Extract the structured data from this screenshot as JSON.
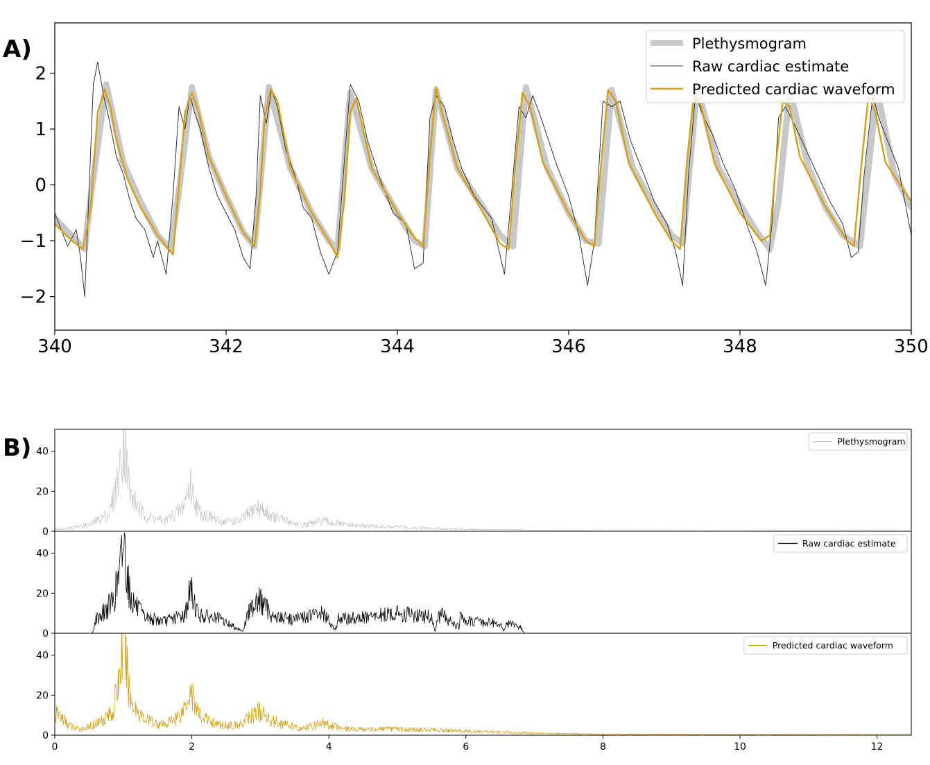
{
  "panels": {
    "a_label": "A)",
    "b_label": "B)"
  },
  "chart_data": [
    {
      "type": "line",
      "panel": "A)",
      "xlim": [
        340,
        350
      ],
      "ylim": [
        -2.6,
        2.9
      ],
      "x_ticks": [
        340,
        342,
        344,
        346,
        348,
        350
      ],
      "y_ticks": [
        -2,
        -1,
        0,
        1,
        2
      ],
      "y_tick_labels": [
        "−2",
        "−1",
        "0",
        "1",
        "2"
      ],
      "grid": false,
      "legend_position": "top-right",
      "beat_times": [
        340.6,
        341.6,
        342.5,
        343.45,
        344.45,
        345.5,
        346.5,
        347.5,
        348.55,
        349.6
      ],
      "series": [
        {
          "name": "Plethysmogram",
          "color": "#c8c8c8",
          "x": [
            340.0,
            340.35,
            340.42,
            340.6,
            340.8,
            341.0,
            341.2,
            341.35,
            341.45,
            341.6,
            341.8,
            342.0,
            342.2,
            342.33,
            342.38,
            342.5,
            342.75,
            343.0,
            343.2,
            343.3,
            343.45,
            343.7,
            344.0,
            344.2,
            344.32,
            344.45,
            344.7,
            345.0,
            345.2,
            345.35,
            345.5,
            345.75,
            346.0,
            346.2,
            346.35,
            346.5,
            346.75,
            347.0,
            347.2,
            347.33,
            347.5,
            347.75,
            348.0,
            348.2,
            348.35,
            348.45,
            348.58,
            348.8,
            349.0,
            349.2,
            349.4,
            349.6,
            349.8,
            350.0
          ],
          "y": [
            -0.6,
            -1.15,
            -0.2,
            1.8,
            0.4,
            -0.3,
            -0.9,
            -1.15,
            -0.1,
            1.75,
            0.5,
            -0.2,
            -0.85,
            -1.1,
            -0.3,
            1.75,
            0.3,
            -0.5,
            -1.0,
            -1.15,
            1.65,
            0.3,
            -0.5,
            -1.0,
            -1.1,
            1.7,
            0.3,
            -0.4,
            -0.9,
            -1.1,
            1.75,
            0.3,
            -0.5,
            -1.0,
            -1.05,
            1.7,
            0.3,
            -0.4,
            -0.9,
            -1.05,
            1.75,
            0.3,
            -0.35,
            -0.85,
            -1.15,
            -0.3,
            1.7,
            0.3,
            -0.4,
            -0.9,
            -1.1,
            1.7,
            0.2,
            -0.4
          ]
        },
        {
          "name": "Raw cardiac estimate",
          "color": "#333333",
          "x": [
            340.0,
            340.05,
            340.1,
            340.15,
            340.25,
            340.3,
            340.35,
            340.45,
            340.5,
            340.57,
            340.63,
            340.72,
            340.8,
            340.88,
            340.95,
            341.05,
            341.15,
            341.2,
            341.3,
            341.38,
            341.45,
            341.52,
            341.58,
            341.63,
            341.7,
            341.8,
            341.9,
            342.0,
            342.1,
            342.2,
            342.28,
            342.35,
            342.4,
            342.47,
            342.53,
            342.6,
            342.7,
            342.8,
            342.9,
            343.0,
            343.1,
            343.2,
            343.3,
            343.38,
            343.45,
            343.55,
            343.65,
            343.8,
            343.95,
            344.1,
            344.2,
            344.3,
            344.38,
            344.45,
            344.55,
            344.65,
            344.75,
            344.9,
            345.1,
            345.25,
            345.33,
            345.42,
            345.5,
            345.58,
            345.7,
            345.85,
            346.0,
            346.12,
            346.22,
            346.3,
            346.4,
            346.5,
            346.6,
            346.72,
            346.85,
            347.0,
            347.15,
            347.25,
            347.33,
            347.4,
            347.48,
            347.58,
            347.68,
            347.8,
            347.95,
            348.1,
            348.2,
            348.3,
            348.38,
            348.45,
            348.53,
            348.63,
            348.75,
            348.9,
            349.05,
            349.2,
            349.3,
            349.38,
            349.45,
            349.55,
            349.62,
            349.72,
            349.85,
            350.0
          ],
          "y": [
            -0.5,
            -0.7,
            -0.9,
            -1.1,
            -0.8,
            -1.3,
            -2.0,
            1.8,
            2.2,
            1.6,
            1.2,
            0.5,
            0.2,
            -0.3,
            -0.6,
            -0.8,
            -1.3,
            -1.0,
            -1.6,
            -0.2,
            1.4,
            1.0,
            1.6,
            1.3,
            1.0,
            0.3,
            -0.2,
            -0.5,
            -0.8,
            -1.3,
            -1.5,
            -0.2,
            1.6,
            1.1,
            1.7,
            1.4,
            0.6,
            0.2,
            -0.4,
            -0.6,
            -1.2,
            -1.6,
            -1.2,
            0.4,
            1.8,
            1.5,
            0.8,
            0.1,
            -0.5,
            -0.7,
            -1.5,
            -1.4,
            1.2,
            1.6,
            1.4,
            0.8,
            0.3,
            -0.2,
            -0.6,
            -1.6,
            -0.2,
            1.4,
            1.2,
            1.6,
            1.1,
            0.4,
            -0.2,
            -0.9,
            -1.8,
            -1.0,
            1.5,
            1.4,
            1.5,
            0.8,
            0.3,
            -0.3,
            -0.7,
            -1.2,
            -1.8,
            0.2,
            1.6,
            1.2,
            0.9,
            0.4,
            -0.1,
            -0.8,
            -1.2,
            -1.8,
            -0.6,
            1.2,
            1.4,
            1.1,
            0.7,
            0.2,
            -0.3,
            -0.7,
            -1.3,
            -1.2,
            0.2,
            1.6,
            1.2,
            0.8,
            0.3,
            -0.9
          ]
        },
        {
          "name": "Predicted cardiac waveform",
          "color": "#d4a017",
          "x": [
            340.0,
            340.2,
            340.33,
            340.42,
            340.5,
            340.58,
            340.65,
            340.72,
            340.85,
            341.0,
            341.2,
            341.38,
            341.45,
            341.52,
            341.6,
            341.68,
            341.8,
            342.0,
            342.2,
            342.33,
            342.4,
            342.45,
            342.52,
            342.6,
            342.75,
            343.0,
            343.2,
            343.3,
            343.38,
            343.45,
            343.52,
            343.7,
            344.0,
            344.2,
            344.3,
            344.38,
            344.45,
            344.52,
            344.7,
            345.0,
            345.2,
            345.3,
            345.38,
            345.46,
            345.55,
            345.7,
            346.0,
            346.2,
            346.3,
            346.38,
            346.46,
            346.55,
            346.7,
            347.0,
            347.2,
            347.3,
            347.38,
            347.46,
            347.55,
            347.7,
            348.0,
            348.25,
            348.35,
            348.42,
            348.5,
            348.58,
            348.7,
            349.0,
            349.25,
            349.33,
            349.42,
            349.5,
            349.58,
            349.7,
            350.0
          ],
          "y": [
            -0.7,
            -1.0,
            -1.15,
            -0.4,
            1.3,
            1.7,
            1.4,
            0.8,
            0.1,
            -0.4,
            -0.9,
            -1.25,
            0.0,
            1.3,
            1.65,
            1.3,
            0.5,
            -0.2,
            -0.85,
            -1.1,
            -0.1,
            1.2,
            1.72,
            1.5,
            0.3,
            -0.5,
            -1.0,
            -1.3,
            -0.3,
            1.3,
            1.55,
            0.3,
            -0.5,
            -0.95,
            -1.1,
            0.5,
            1.75,
            1.3,
            0.3,
            -0.5,
            -1.05,
            -1.15,
            0.4,
            1.65,
            1.4,
            0.4,
            -0.5,
            -1.0,
            -1.1,
            0.4,
            1.7,
            1.5,
            0.4,
            -0.5,
            -1.0,
            -1.15,
            0.4,
            1.6,
            1.4,
            0.4,
            -0.5,
            -1.0,
            -0.9,
            0.4,
            1.5,
            1.4,
            0.5,
            -0.4,
            -1.0,
            -1.1,
            0.4,
            1.6,
            1.3,
            0.4,
            -0.3
          ]
        }
      ]
    },
    {
      "type": "line",
      "panel": "B)",
      "subplot": 1,
      "xlim": [
        0,
        12.5
      ],
      "ylim": [
        0,
        51
      ],
      "y_ticks": [
        0,
        20,
        40
      ],
      "grid": false,
      "legend_position": "top-right",
      "series": [
        {
          "name": "Plethysmogram",
          "color": "#c8c8c8",
          "x": [
            0,
            0.5,
            0.8,
            0.95,
            1.0,
            1.1,
            1.3,
            1.6,
            1.85,
            1.98,
            2.1,
            2.4,
            2.7,
            2.95,
            3.2,
            3.6,
            3.9,
            4.3,
            5.0,
            6.0,
            7.0,
            8.0,
            10.0,
            12.5
          ],
          "y": [
            1,
            3,
            9,
            30,
            49,
            18,
            8,
            5,
            11,
            23,
            10,
            5,
            5,
            12,
            7,
            3,
            5,
            3,
            2,
            1,
            0.5,
            0.3,
            0.2,
            0.1
          ]
        }
      ]
    },
    {
      "type": "line",
      "panel": "B)",
      "subplot": 2,
      "xlim": [
        0,
        12.5
      ],
      "ylim": [
        0,
        51
      ],
      "y_ticks": [
        0,
        20,
        40
      ],
      "grid": false,
      "legend_position": "top-right",
      "series": [
        {
          "name": "Raw cardiac estimate",
          "color": "#000000",
          "x": [
            0,
            0.55,
            0.6,
            0.7,
            0.85,
            0.95,
            1.0,
            1.1,
            1.3,
            1.6,
            1.9,
            1.98,
            2.1,
            2.4,
            2.75,
            2.8,
            2.95,
            3.2,
            3.5,
            3.9,
            4.1,
            4.15,
            4.2,
            4.6,
            5.0,
            5.5,
            5.55,
            5.6,
            5.65,
            5.9,
            5.92,
            6.0,
            6.05,
            6.5,
            6.55,
            6.6,
            6.8,
            6.85,
            12.5
          ],
          "y": [
            0,
            0,
            7,
            10,
            16,
            30,
            47,
            18,
            8,
            6,
            9,
            22,
            9,
            7,
            1,
            8,
            18,
            8,
            7,
            10,
            2,
            8,
            7,
            8,
            10,
            8,
            1,
            8,
            9,
            3,
            9,
            5,
            6,
            5,
            1,
            5,
            3,
            0,
            0
          ]
        }
      ]
    },
    {
      "type": "line",
      "panel": "B)",
      "subplot": 3,
      "xlim": [
        0,
        12.5
      ],
      "ylim": [
        0,
        51
      ],
      "x_ticks": [
        0,
        2,
        4,
        6,
        8,
        10,
        12
      ],
      "y_ticks": [
        0,
        20,
        40
      ],
      "grid": false,
      "legend_position": "top-right",
      "series": [
        {
          "name": "Predicted cardiac waveform",
          "color": "#d4a017",
          "x": [
            0,
            0.05,
            0.2,
            0.35,
            0.5,
            0.7,
            0.85,
            0.95,
            1.0,
            1.1,
            1.3,
            1.6,
            1.85,
            1.98,
            2.1,
            2.4,
            2.7,
            2.95,
            3.2,
            3.6,
            3.9,
            4.3,
            5.0,
            6.0,
            7.0,
            8.0,
            10.0,
            12.5
          ],
          "y": [
            9,
            11,
            5,
            3,
            4,
            8,
            12,
            30,
            49,
            18,
            8,
            5,
            11,
            23,
            10,
            5,
            5,
            12,
            7,
            3,
            6,
            3,
            3,
            2,
            1,
            0.5,
            0.3,
            0.2
          ]
        }
      ]
    }
  ]
}
